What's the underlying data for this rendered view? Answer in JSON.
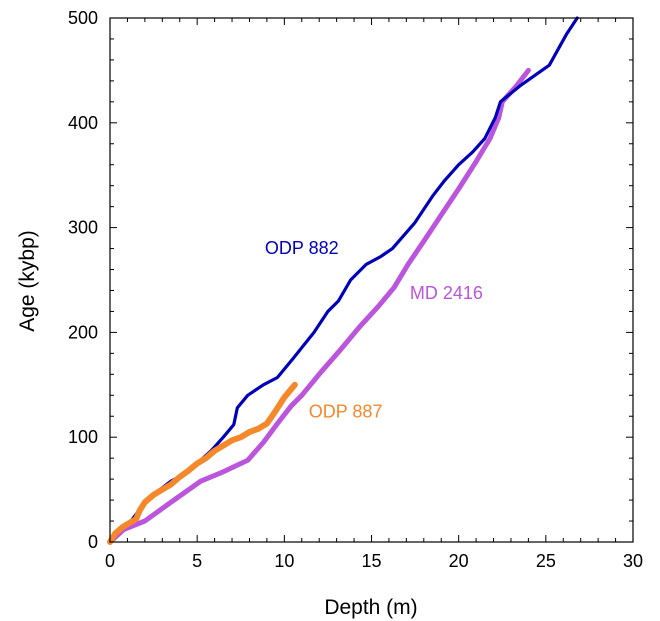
{
  "chart_data": {
    "type": "line",
    "title": "",
    "xlabel": "Depth (m)",
    "ylabel": "Age (kybp)",
    "xlim": [
      0,
      30
    ],
    "ylim": [
      0,
      500
    ],
    "x_ticks": [
      0,
      5,
      10,
      15,
      20,
      25,
      30
    ],
    "y_ticks": [
      0,
      100,
      200,
      300,
      400,
      500
    ],
    "x_tick_labels": [
      "0",
      "5",
      "10",
      "15",
      "20",
      "25",
      "30"
    ],
    "y_tick_labels": [
      "0",
      "100",
      "200",
      "300",
      "400",
      "500"
    ],
    "x_minor_step": 1,
    "y_minor_step": 20,
    "grid": false,
    "legend": "none",
    "series": [
      {
        "name": "ODP 882",
        "color": "#0000bb",
        "points": [
          [
            0.0,
            0
          ],
          [
            0.5,
            10
          ],
          [
            1.2,
            20
          ],
          [
            1.9,
            35
          ],
          [
            2.7,
            48
          ],
          [
            3.5,
            58
          ],
          [
            4.3,
            65
          ],
          [
            5.0,
            75
          ],
          [
            5.8,
            87
          ],
          [
            6.5,
            100
          ],
          [
            7.1,
            112
          ],
          [
            7.3,
            128
          ],
          [
            7.9,
            140
          ],
          [
            8.8,
            150
          ],
          [
            9.6,
            157
          ],
          [
            10.5,
            175
          ],
          [
            11.7,
            200
          ],
          [
            12.5,
            220
          ],
          [
            13.1,
            230
          ],
          [
            13.8,
            250
          ],
          [
            14.7,
            265
          ],
          [
            15.5,
            272
          ],
          [
            16.2,
            280
          ],
          [
            17.5,
            305
          ],
          [
            18.5,
            330
          ],
          [
            19.2,
            345
          ],
          [
            20.0,
            360
          ],
          [
            20.8,
            372
          ],
          [
            21.5,
            385
          ],
          [
            22.1,
            405
          ],
          [
            22.4,
            420
          ],
          [
            23.5,
            435
          ],
          [
            25.2,
            455
          ],
          [
            26.2,
            485
          ],
          [
            26.8,
            500
          ]
        ]
      },
      {
        "name": "MD 2416",
        "color": "#bb55dd",
        "points": [
          [
            0.0,
            0
          ],
          [
            0.8,
            12
          ],
          [
            2.0,
            20
          ],
          [
            3.5,
            38
          ],
          [
            5.2,
            58
          ],
          [
            6.5,
            67
          ],
          [
            7.9,
            78
          ],
          [
            8.8,
            95
          ],
          [
            9.6,
            113
          ],
          [
            10.4,
            130
          ],
          [
            11.0,
            140
          ],
          [
            12.1,
            162
          ],
          [
            13.2,
            183
          ],
          [
            14.3,
            205
          ],
          [
            15.4,
            225
          ],
          [
            16.3,
            243
          ],
          [
            17.1,
            265
          ],
          [
            18.0,
            287
          ],
          [
            19.0,
            312
          ],
          [
            20.0,
            337
          ],
          [
            21.0,
            363
          ],
          [
            21.8,
            385
          ],
          [
            22.3,
            405
          ],
          [
            22.5,
            420
          ],
          [
            23.3,
            435
          ],
          [
            24.0,
            450
          ]
        ]
      },
      {
        "name": "ODP 887",
        "color": "#f5882a",
        "points": [
          [
            0.0,
            0
          ],
          [
            0.3,
            8
          ],
          [
            0.7,
            14
          ],
          [
            1.1,
            18
          ],
          [
            1.5,
            22
          ],
          [
            1.7,
            30
          ],
          [
            2.0,
            38
          ],
          [
            2.5,
            45
          ],
          [
            3.0,
            50
          ],
          [
            3.5,
            55
          ],
          [
            4.0,
            62
          ],
          [
            4.5,
            68
          ],
          [
            5.0,
            75
          ],
          [
            5.5,
            80
          ],
          [
            6.0,
            87
          ],
          [
            6.5,
            92
          ],
          [
            7.0,
            97
          ],
          [
            7.5,
            100
          ],
          [
            8.0,
            105
          ],
          [
            8.5,
            108
          ],
          [
            9.0,
            113
          ],
          [
            9.5,
            125
          ],
          [
            10.0,
            138
          ],
          [
            10.6,
            150
          ]
        ]
      }
    ],
    "annotations": [
      {
        "text": "ODP 882",
        "color": "#0000bb",
        "x": 11.0,
        "y": 275,
        "anchor": "middle"
      },
      {
        "text": "MD 2416",
        "color": "#bb55dd",
        "x": 17.2,
        "y": 232,
        "anchor": "start"
      },
      {
        "text": "ODP 887",
        "color": "#f5882a",
        "x": 11.4,
        "y": 119,
        "anchor": "start"
      }
    ]
  }
}
